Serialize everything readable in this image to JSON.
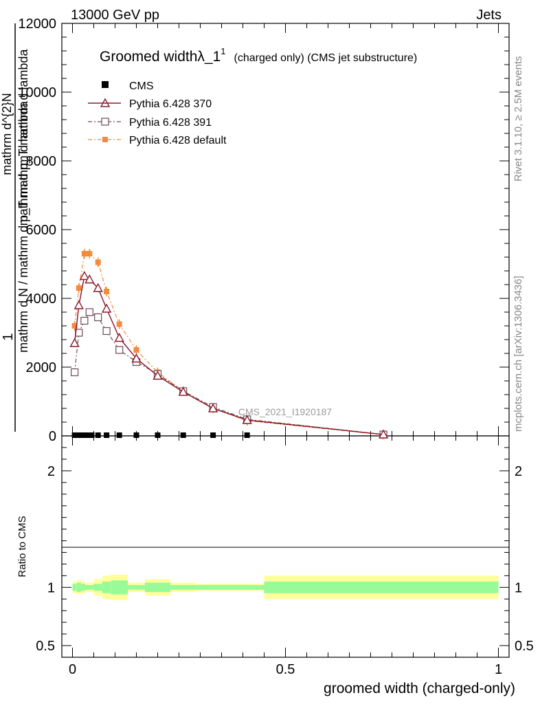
{
  "header": {
    "left": "13000 GeV pp",
    "right": "Jets"
  },
  "side_labels": {
    "rivet": "Rivet 3.1.10, ≥ 2.5M events",
    "mcplots": "mcplots.cern.ch [arXiv:1306.3436]"
  },
  "watermark": "CMS_2021_I1920187",
  "title": {
    "main": "Groomed widthλ_1",
    "sup": "1",
    "suffix": "(charged only) (CMS jet substructure)"
  },
  "legend": [
    {
      "name": "CMS"
    },
    {
      "name": "Pythia 6.428 370"
    },
    {
      "name": "Pythia 6.428 391"
    },
    {
      "name": "Pythia 6.428 default"
    }
  ],
  "colors": {
    "cms": "#000000",
    "p370": "#8b1a2b",
    "p391": "#6b4a55",
    "pdef": "#f58a3c",
    "band_inner": "#98fb98",
    "band_outer": "#ffff99"
  },
  "axes": {
    "ylabel_main_top": "1",
    "ylabel_main_lines": [
      "mathrm d N / mathrm d p_T mathrm d lambda",
      "mathrm d^{2}N",
      "mathrm d p_T mathrm d lambda"
    ],
    "ylabel_ratio": "Ratio to CMS",
    "xlabel": "groomed width (charged-only)"
  },
  "chart_data": [
    {
      "type": "line",
      "panel": "main",
      "ylim": [
        0,
        12000
      ],
      "xlim": [
        -0.025,
        1.025
      ],
      "yticks": [
        0,
        2000,
        4000,
        6000,
        8000,
        10000,
        12000
      ],
      "ytick_labels": [
        "0",
        "2000",
        "4000",
        "6000",
        "8000",
        "10000",
        "12000"
      ],
      "series": [
        {
          "name": "CMS",
          "x": [
            0.005,
            0.015,
            0.025,
            0.035,
            0.045,
            0.06,
            0.08,
            0.11,
            0.15,
            0.2,
            0.26,
            0.33,
            0.41
          ],
          "y": [
            0,
            0,
            0,
            0,
            0,
            0,
            0,
            0,
            0,
            0,
            0,
            0,
            0
          ]
        },
        {
          "name": "Pythia 6.428 370",
          "x": [
            0.005,
            0.015,
            0.028,
            0.04,
            0.06,
            0.08,
            0.11,
            0.15,
            0.2,
            0.26,
            0.33,
            0.41,
            0.73
          ],
          "y": [
            2700,
            3800,
            4650,
            4550,
            4300,
            3700,
            2850,
            2250,
            1750,
            1280,
            800,
            460,
            40
          ]
        },
        {
          "name": "Pythia 6.428 391",
          "x": [
            0.005,
            0.015,
            0.028,
            0.04,
            0.06,
            0.08,
            0.11,
            0.15,
            0.2,
            0.26,
            0.33,
            0.41,
            0.73
          ],
          "y": [
            1850,
            3000,
            3350,
            3600,
            3450,
            3050,
            2500,
            2150,
            1800,
            1300,
            840,
            480,
            40
          ]
        },
        {
          "name": "Pythia 6.428 default",
          "x": [
            0.005,
            0.015,
            0.028,
            0.04,
            0.06,
            0.08,
            0.11,
            0.15,
            0.2,
            0.26,
            0.33,
            0.41,
            0.73
          ],
          "y": [
            3200,
            4300,
            5300,
            5300,
            5050,
            4200,
            3250,
            2500,
            1850,
            1300,
            800,
            440,
            35
          ]
        }
      ]
    },
    {
      "type": "area",
      "panel": "ratio",
      "ylim": [
        0.4,
        2.3
      ],
      "yticks": [
        0.5,
        1,
        2
      ],
      "ytick_labels": [
        "0.5",
        "1",
        "2"
      ],
      "xticks": [
        0,
        0.5,
        1
      ],
      "xtick_labels": [
        "0",
        "0.5",
        "1"
      ],
      "bins": [
        0,
        0.01,
        0.02,
        0.03,
        0.05,
        0.07,
        0.09,
        0.13,
        0.17,
        0.23,
        0.29,
        0.37,
        0.45,
        1.0
      ],
      "inner_lo": [
        0.97,
        0.96,
        0.97,
        0.98,
        0.97,
        0.95,
        0.94,
        0.98,
        0.96,
        0.98,
        0.98,
        0.98,
        0.95
      ],
      "inner_hi": [
        1.03,
        1.04,
        1.03,
        1.02,
        1.03,
        1.05,
        1.06,
        1.02,
        1.04,
        1.02,
        1.02,
        1.02,
        1.05
      ],
      "outer_lo": [
        0.95,
        0.94,
        0.95,
        0.96,
        0.93,
        0.9,
        0.89,
        0.96,
        0.93,
        0.96,
        0.97,
        0.97,
        0.9
      ],
      "outer_hi": [
        1.05,
        1.06,
        1.05,
        1.04,
        1.07,
        1.1,
        1.11,
        1.04,
        1.07,
        1.04,
        1.03,
        1.03,
        1.1
      ]
    }
  ]
}
